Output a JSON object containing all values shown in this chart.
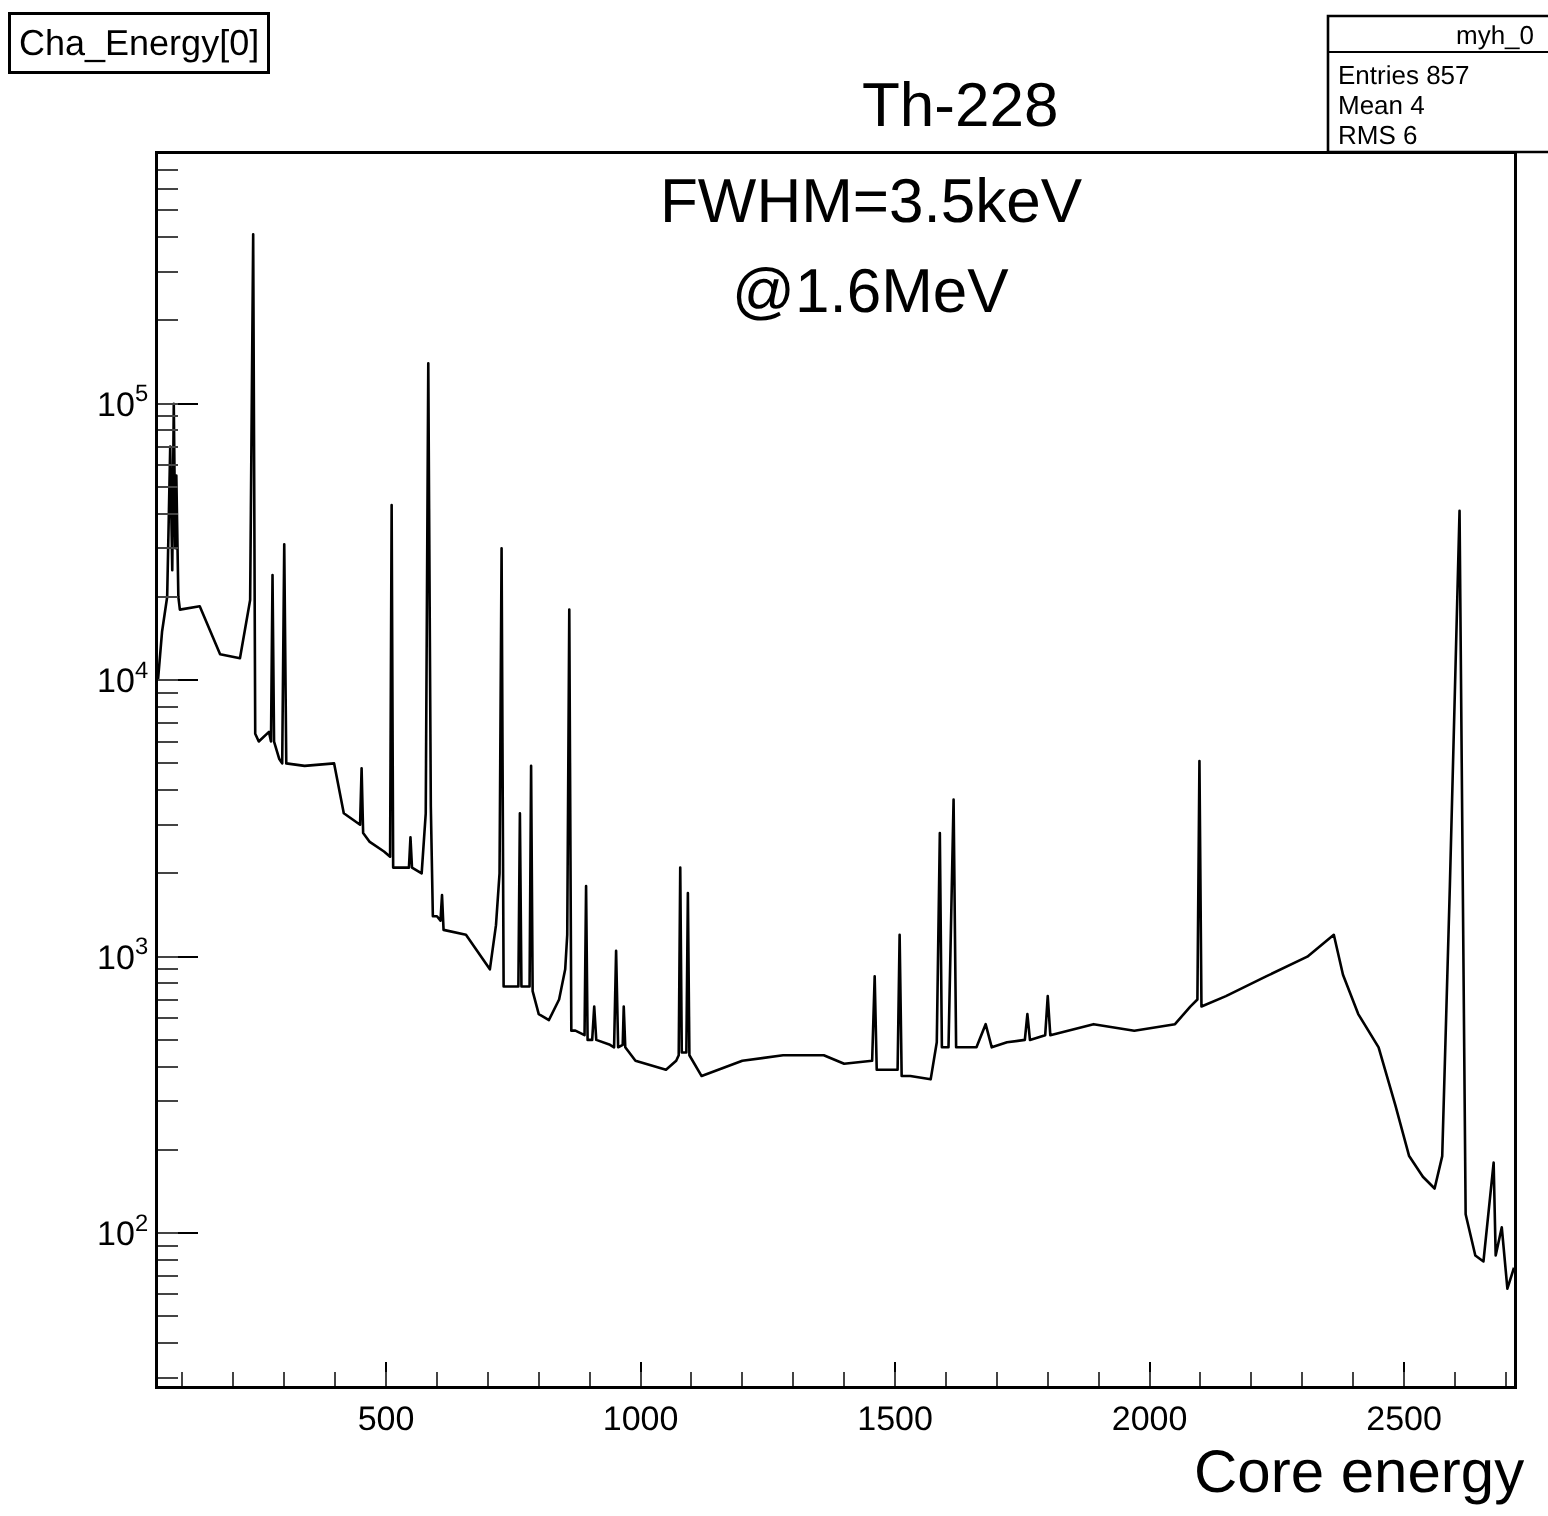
{
  "chart_data": {
    "type": "line",
    "title": "Cha_Energy[0]",
    "xlabel": "Core energy",
    "annotations": [
      "Th-228",
      "FWHM=3.5keV",
      "@1.6MeV",
      "myh_0",
      "Entries 857",
      "Mean 4",
      "RMS 6"
    ],
    "log": true,
    "xlim": [
      52,
      2716
    ],
    "ylim": [
      28,
      800000
    ],
    "xticks": [
      {
        "value": 100,
        "label": null
      },
      {
        "value": 200,
        "label": null
      },
      {
        "value": 300,
        "label": null
      },
      {
        "value": 400,
        "label": null
      },
      500,
      {
        "value": 600,
        "label": null
      },
      {
        "value": 700,
        "label": null
      },
      {
        "value": 800,
        "label": null
      },
      {
        "value": 900,
        "label": null
      },
      1000,
      {
        "value": 1100,
        "label": null
      },
      {
        "value": 1200,
        "label": null
      },
      {
        "value": 1300,
        "label": null
      },
      {
        "value": 1400,
        "label": null
      },
      1500,
      {
        "value": 1600,
        "label": null
      },
      {
        "value": 1700,
        "label": null
      },
      {
        "value": 1800,
        "label": null
      },
      {
        "value": 1900,
        "label": null
      },
      2000,
      {
        "value": 2100,
        "label": null
      },
      {
        "value": 2200,
        "label": null
      },
      {
        "value": 2300,
        "label": null
      },
      {
        "value": 2400,
        "label": null
      },
      2500,
      {
        "value": 2600,
        "label": null
      },
      {
        "value": 2700,
        "label": null
      }
    ],
    "yticks": [
      {
        "value": 30,
        "label": null
      },
      {
        "value": 40,
        "label": null
      },
      {
        "value": 50,
        "label": null
      },
      {
        "value": 60,
        "label": null
      },
      {
        "value": 70,
        "label": null
      },
      {
        "value": 80,
        "label": null
      },
      {
        "value": 90,
        "label": null
      },
      {
        "value": 100,
        "label": "10$^{2}$"
      },
      {
        "value": 200,
        "label": null
      },
      {
        "value": 300,
        "label": null
      },
      {
        "value": 400,
        "label": null
      },
      {
        "value": 500,
        "label": null
      },
      {
        "value": 600,
        "label": null
      },
      {
        "value": 700,
        "label": null
      },
      {
        "value": 800,
        "label": null
      },
      {
        "value": 900,
        "label": null
      },
      {
        "value": 1000,
        "label": "10$^{3}$"
      },
      {
        "value": 2000,
        "label": null
      },
      {
        "value": 3000,
        "label": null
      },
      {
        "value": 4000,
        "label": null
      },
      {
        "value": 5000,
        "label": null
      },
      {
        "value": 6000,
        "label": null
      },
      {
        "value": 7000,
        "label": null
      },
      {
        "value": 8000,
        "label": null
      },
      {
        "value": 9000,
        "label": null
      },
      {
        "value": 10000,
        "label": "10$^{4}$"
      },
      {
        "value": 20000,
        "label": null
      },
      {
        "value": 30000,
        "label": null
      },
      {
        "value": 40000,
        "label": null
      },
      {
        "value": 50000,
        "label": null
      },
      {
        "value": 60000,
        "label": null
      },
      {
        "value": 70000,
        "label": null
      },
      {
        "value": 80000,
        "label": null
      },
      {
        "value": 90000,
        "label": null
      },
      {
        "value": 100000,
        "label": "10$^{5}$"
      },
      {
        "value": 200000,
        "label": null
      },
      {
        "value": 300000,
        "label": null
      },
      {
        "value": 400000,
        "label": null
      },
      {
        "value": 500000,
        "label": null
      },
      {
        "value": 600000,
        "label": null
      },
      {
        "value": 700000,
        "label": null
      },
      {
        "value": 800000,
        "label": null
      }
    ],
    "x": [
      52,
      60,
      70,
      76,
      80,
      83,
      86,
      88,
      92,
      95,
      134,
      174,
      213,
      233,
      239,
      243,
      250,
      270,
      274,
      277,
      280,
      290,
      296,
      300,
      304,
      340,
      398,
      417,
      449,
      452,
      455,
      468,
      496,
      508,
      511,
      514,
      530,
      545,
      548,
      551,
      570,
      578,
      583,
      588,
      592,
      600,
      607,
      610,
      613,
      657,
      704,
      716,
      723,
      727,
      731,
      755,
      760,
      763,
      766,
      782,
      785,
      788,
      800,
      820,
      840,
      852,
      856,
      860,
      864,
      872,
      890,
      893,
      896,
      905,
      909,
      913,
      940,
      948,
      952,
      956,
      965,
      967,
      970,
      990,
      1050,
      1070,
      1075,
      1078,
      1081,
      1090,
      1093,
      1096,
      1120,
      1200,
      1280,
      1360,
      1400,
      1455,
      1460,
      1464,
      1505,
      1509,
      1513,
      1530,
      1570,
      1582,
      1588,
      1592,
      1605,
      1615,
      1620,
      1660,
      1678,
      1690,
      1720,
      1755,
      1760,
      1765,
      1795,
      1800,
      1805,
      1890,
      1970,
      2050,
      2080,
      2094,
      2098,
      2102,
      2150,
      2230,
      2310,
      2362,
      2380,
      2410,
      2450,
      2483,
      2510,
      2537,
      2560,
      2575,
      2590,
      2609,
      2621,
      2640,
      2656,
      2676,
      2680,
      2692,
      2703,
      2716
    ],
    "values": [
      10000,
      15000,
      20000,
      70000,
      25000,
      100000,
      30000,
      55000,
      20000,
      18000,
      18500,
      12400,
      12000,
      19500,
      410000,
      6400,
      6000,
      6500,
      6000,
      24000,
      6000,
      5200,
      5000,
      31000,
      5000,
      4900,
      5000,
      3300,
      3000,
      4800,
      2800,
      2600,
      2400,
      2300,
      43000,
      2100,
      2100,
      2100,
      2700,
      2100,
      2000,
      3300,
      140000,
      3500,
      1400,
      1400,
      1350,
      1670,
      1250,
      1200,
      900,
      1300,
      2000,
      30000,
      780,
      780,
      780,
      3300,
      780,
      780,
      4900,
      750,
      620,
      590,
      700,
      900,
      1200,
      18000,
      540,
      540,
      520,
      1800,
      500,
      500,
      660,
      500,
      480,
      470,
      1050,
      470,
      480,
      660,
      470,
      420,
      390,
      420,
      440,
      2100,
      450,
      450,
      1700,
      440,
      370,
      420,
      440,
      440,
      410,
      420,
      850,
      390,
      390,
      1200,
      370,
      370,
      360,
      490,
      2800,
      470,
      470,
      3700,
      470,
      470,
      570,
      470,
      490,
      500,
      620,
      500,
      520,
      720,
      520,
      570,
      540,
      570,
      660,
      700,
      5100,
      660,
      720,
      850,
      1000,
      1200,
      860,
      620,
      470,
      290,
      190,
      160,
      145,
      190,
      1800,
      41000,
      117,
      83,
      79,
      180,
      83,
      105,
      63,
      75
    ]
  }
}
